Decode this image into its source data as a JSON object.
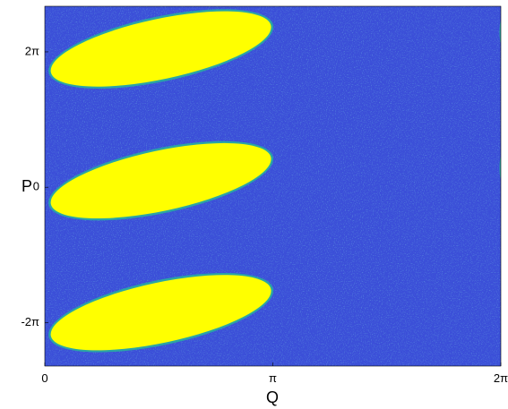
{
  "chart_data": {
    "type": "heatmap",
    "title": "",
    "xlabel": "Q",
    "ylabel": "P",
    "xlim": [
      0,
      6.2832
    ],
    "ylim": [
      -8.3,
      8.4
    ],
    "x_ticks": [
      {
        "value": 0,
        "label": "0"
      },
      {
        "value": 3.1416,
        "label": "π"
      },
      {
        "value": 6.2832,
        "label": "2π"
      }
    ],
    "y_ticks": [
      {
        "value": 6.2832,
        "label": "2π"
      },
      {
        "value": 0,
        "label": "0"
      },
      {
        "value": -6.2832,
        "label": "-2π"
      }
    ],
    "background_color": "#3b4fd8",
    "region_color": "#ffff00",
    "edge_color": "#2aa5a5",
    "grid": false,
    "legend": "none",
    "regions": [
      {
        "name": "top",
        "q_center": 1.6,
        "p_center": 6.42,
        "q_half_width": 1.55,
        "p_half_height": 1.4,
        "tilt_deg": -12
      },
      {
        "name": "middle",
        "q_center": 1.6,
        "p_center": 0.3,
        "q_half_width": 1.55,
        "p_half_height": 1.4,
        "tilt_deg": -12
      },
      {
        "name": "bottom",
        "q_center": 1.6,
        "p_center": -5.82,
        "q_half_width": 1.55,
        "p_half_height": 1.4,
        "tilt_deg": -12
      }
    ],
    "right_edge_sliver_p": [
      7.2,
      0.9
    ]
  }
}
